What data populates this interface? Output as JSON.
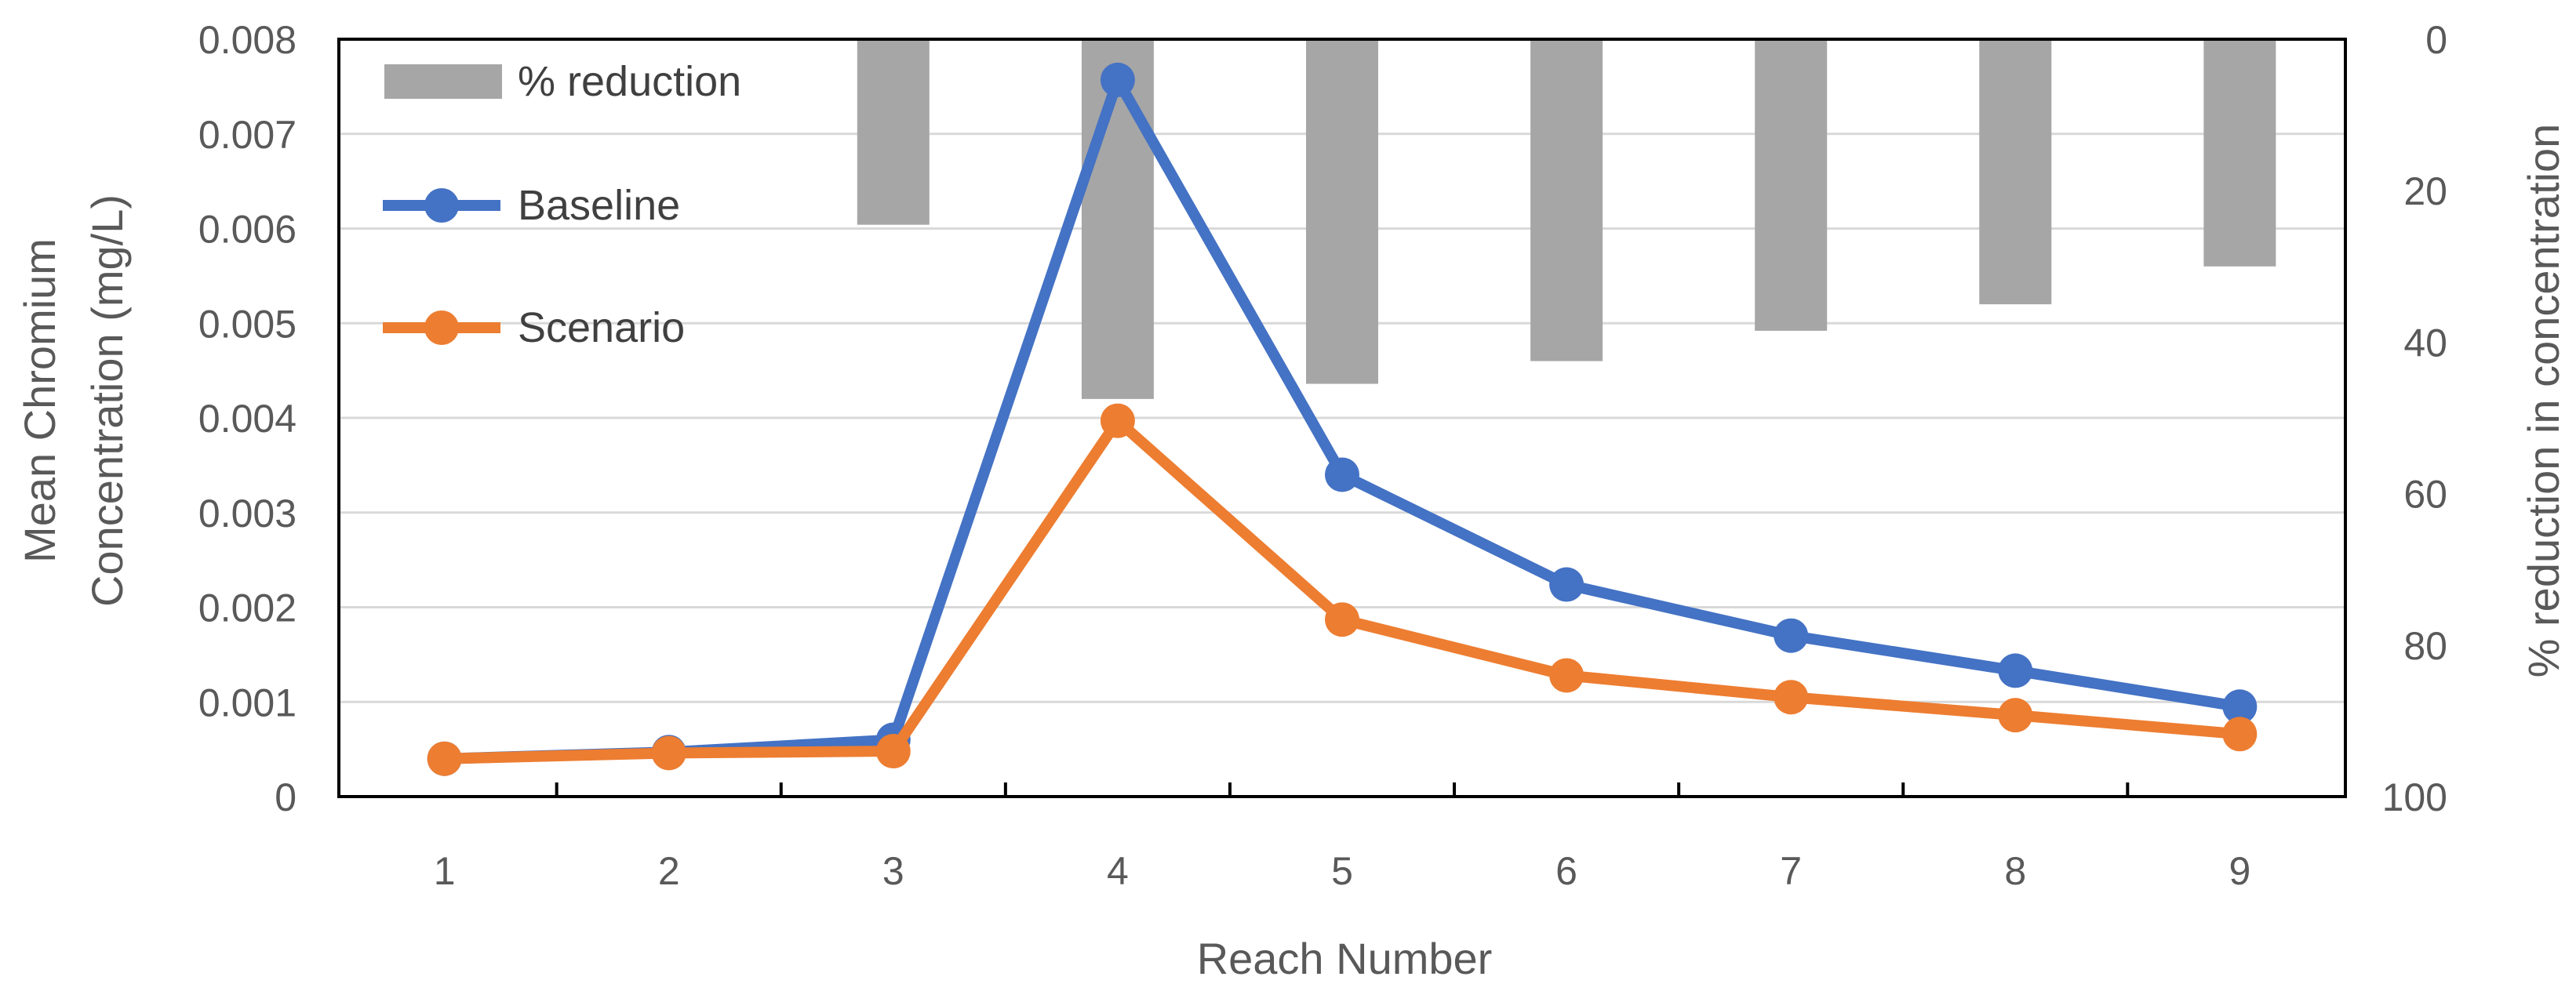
{
  "chart_data": {
    "type": "bar+line",
    "title": "",
    "categories": [
      "1",
      "2",
      "3",
      "4",
      "5",
      "6",
      "7",
      "8",
      "9"
    ],
    "xlabel": "Reach Number",
    "ylabel_left_line1": "Mean Chromium",
    "ylabel_left_line2": "Concentration (mg/L)",
    "ylabel_right": "% reduction in concentration",
    "y_left": {
      "min": 0,
      "max": 0.008,
      "ticks": [
        "0",
        "0.001",
        "0.002",
        "0.003",
        "0.004",
        "0.005",
        "0.006",
        "0.007",
        "0.008"
      ]
    },
    "y_right": {
      "min": 0,
      "max": 100,
      "reversed": true,
      "ticks": [
        "0",
        "20",
        "40",
        "60",
        "80",
        "100"
      ]
    },
    "grid": true,
    "legend_position": "top-left",
    "bars": {
      "name": "% reduction",
      "axis": "right",
      "color": "#a6a6a6",
      "values": [
        null,
        null,
        24.5,
        47.5,
        45.5,
        42.5,
        38.5,
        35,
        30
      ]
    },
    "series": [
      {
        "name": "Baseline",
        "axis": "left",
        "color": "#4472c4",
        "values": [
          0.0004,
          0.00047,
          0.0006,
          0.00757,
          0.0034,
          0.00224,
          0.0017,
          0.00133,
          0.00095
        ]
      },
      {
        "name": "Scenario",
        "axis": "left",
        "color": "#ed7d31",
        "values": [
          0.0004,
          0.00046,
          0.00048,
          0.00397,
          0.00187,
          0.00128,
          0.00105,
          0.00086,
          0.00066
        ]
      }
    ]
  }
}
